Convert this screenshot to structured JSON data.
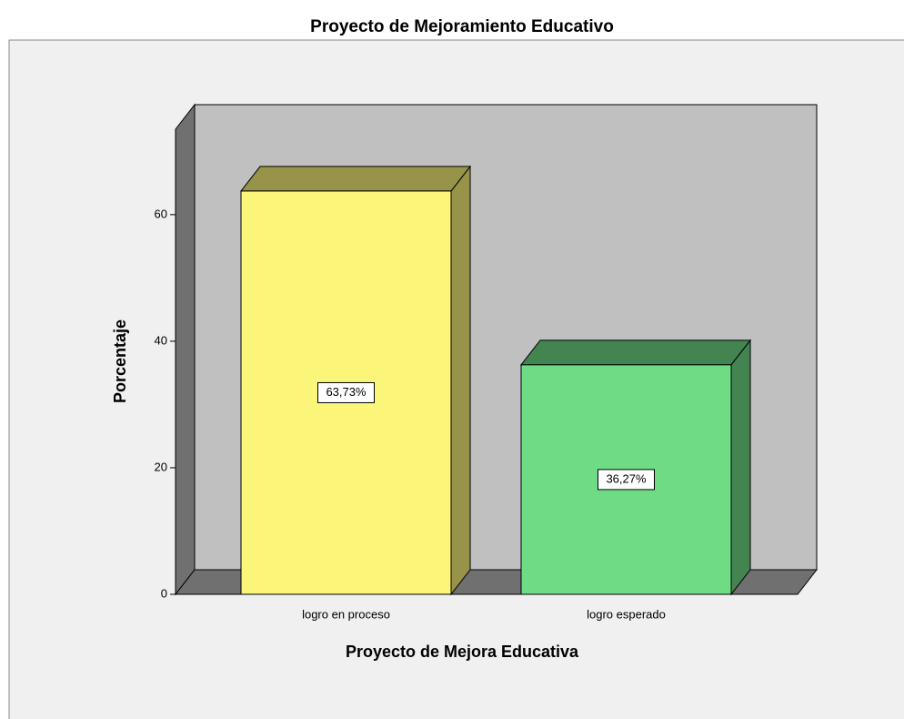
{
  "chart_data": {
    "type": "bar3d",
    "title": "Proyecto de Mejoramiento Educativo",
    "x_label": "Proyecto de Mejora Educativa",
    "y_label": "Porcentaje",
    "categories": [
      "logro en proceso",
      "logro esperado"
    ],
    "values": [
      63.73,
      36.27
    ],
    "value_labels": [
      "63,73%",
      "36,27%"
    ],
    "colors": [
      "#fbf579",
      "#6fdc85"
    ],
    "ylim": [
      0,
      73.5
    ],
    "yticks": [
      0,
      20,
      40,
      60
    ]
  }
}
